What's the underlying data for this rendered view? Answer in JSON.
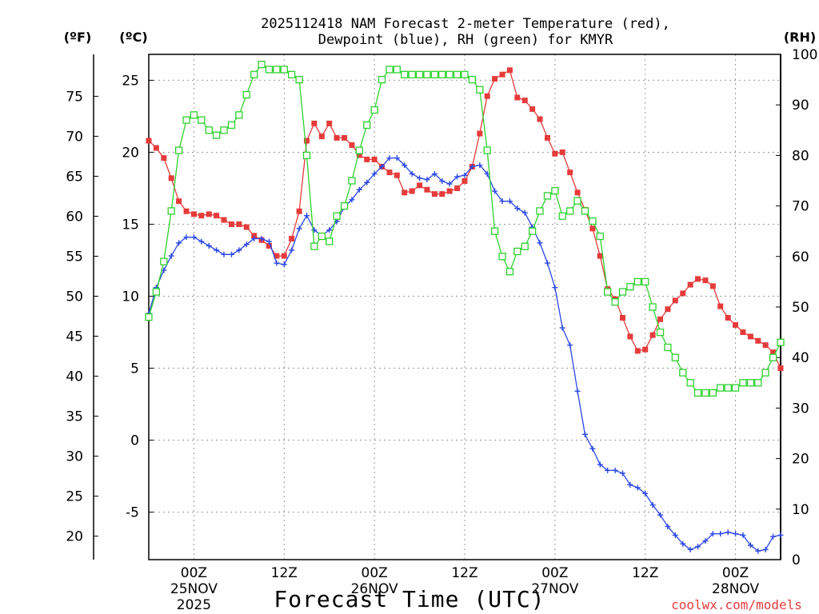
{
  "chart_data": {
    "type": "line",
    "title_line1": "2025112418 NAM Forecast 2-meter Temperature (red),",
    "title_line2": "Dewpoint (blue), RH (green) for KMYR",
    "xlabel": "Forecast Time (UTC)",
    "credit": "coolwx.com/models",
    "units": {
      "fahrenheit": "(ºF)",
      "celsius": "(ºC)",
      "rh": "(RH)"
    },
    "x_range_hours": [
      -5,
      65
    ],
    "celsius_range": [
      -8.3,
      26.8
    ],
    "rh_range": [
      0,
      100
    ],
    "celsius_ticks": [
      "-5",
      "0",
      "5",
      "10",
      "15",
      "20",
      "25"
    ],
    "fahrenheit_ticks": [
      "20",
      "25",
      "30",
      "35",
      "40",
      "45",
      "50",
      "55",
      "60",
      "65",
      "70",
      "75"
    ],
    "rh_ticks": [
      "0",
      "10",
      "20",
      "30",
      "40",
      "50",
      "60",
      "70",
      "80",
      "90",
      "100"
    ],
    "x_ticks": [
      {
        "hour": 0,
        "line1": "00Z",
        "line2": "25NOV",
        "line3": "2025"
      },
      {
        "hour": 10,
        "line1": "12Z",
        "line2": "",
        "line3": ""
      },
      {
        "hour": 20,
        "line1": "00Z",
        "line2": "26NOV",
        "line3": ""
      },
      {
        "hour": 30,
        "line1": "12Z",
        "line2": "",
        "line3": ""
      },
      {
        "hour": 40,
        "line1": "00Z",
        "line2": "27NOV",
        "line3": ""
      },
      {
        "hour": 50,
        "line1": "12Z",
        "line2": "",
        "line3": ""
      },
      {
        "hour": 60,
        "line1": "00Z",
        "line2": "28NOV",
        "line3": ""
      }
    ],
    "series": [
      {
        "name": "Temperature",
        "unit": "C",
        "color": "#e63b3b",
        "marker": "filled-square",
        "x": [
          -5,
          -4.17,
          -3.33,
          -2.5,
          -1.67,
          -0.83,
          0,
          0.83,
          1.67,
          2.5,
          3.33,
          4.17,
          5,
          5.83,
          6.67,
          7.5,
          8.33,
          9.17,
          10,
          10.83,
          11.67,
          12.5,
          13.33,
          14.17,
          15,
          15.83,
          16.67,
          17.5,
          18.33,
          19.17,
          20,
          20.83,
          21.67,
          22.5,
          23.33,
          24.17,
          25,
          25.83,
          26.67,
          27.5,
          28.33,
          29.17,
          30,
          30.83,
          31.67,
          32.5,
          33.33,
          34.17,
          35,
          35.83,
          36.67,
          37.5,
          38.33,
          39.17,
          40,
          40.83,
          41.67,
          42.5,
          43.33,
          44.17,
          45,
          45.83,
          46.67,
          47.5,
          48.33,
          49.17,
          50,
          50.83,
          51.67,
          52.5,
          53.33,
          54.17,
          55,
          55.83,
          56.67,
          57.5,
          58.33,
          59.17,
          60,
          60.83,
          61.67,
          62.5,
          63.33,
          64.17,
          65
        ],
        "values": [
          20.8,
          20.3,
          19.6,
          18.2,
          16.6,
          15.9,
          15.7,
          15.6,
          15.7,
          15.6,
          15.3,
          15.0,
          15.0,
          14.8,
          14.2,
          13.9,
          13.5,
          12.8,
          12.8,
          14.0,
          15.9,
          20.8,
          22.0,
          21.1,
          22.0,
          21.0,
          21.0,
          20.5,
          19.8,
          19.5,
          19.5,
          19.0,
          18.6,
          18.4,
          17.2,
          17.3,
          17.7,
          17.4,
          17.1,
          17.1,
          17.3,
          17.5,
          18.0,
          19.0,
          21.3,
          23.9,
          25.1,
          25.4,
          25.7,
          23.8,
          23.6,
          23.0,
          22.3,
          21.0,
          19.9,
          20.0,
          18.6,
          17.2,
          16.0,
          14.7,
          12.8,
          10.5,
          9.8,
          8.5,
          7.2,
          6.2,
          6.3,
          7.3,
          8.4,
          9.1,
          9.7,
          10.2,
          10.8,
          11.2,
          11.1,
          10.7,
          9.3,
          8.5,
          8.0,
          7.5,
          7.2,
          6.9,
          6.6,
          6.1,
          5.0
        ]
      },
      {
        "name": "Dewpoint",
        "unit": "C",
        "color": "#2b47e6",
        "marker": "plus",
        "x": [
          -5,
          -4.17,
          -3.33,
          -2.5,
          -1.67,
          -0.83,
          0,
          0.83,
          1.67,
          2.5,
          3.33,
          4.17,
          5,
          5.83,
          6.67,
          7.5,
          8.33,
          9.17,
          10,
          10.83,
          11.67,
          12.5,
          13.33,
          14.17,
          15,
          15.83,
          16.67,
          17.5,
          18.33,
          19.17,
          20,
          20.83,
          21.67,
          22.5,
          23.33,
          24.17,
          25,
          25.83,
          26.67,
          27.5,
          28.33,
          29.17,
          30,
          30.83,
          31.67,
          32.5,
          33.33,
          34.17,
          35,
          35.83,
          36.67,
          37.5,
          38.33,
          39.17,
          40,
          40.83,
          41.67,
          42.5,
          43.33,
          44.17,
          45,
          45.83,
          46.67,
          47.5,
          48.33,
          49.17,
          50,
          50.83,
          51.67,
          52.5,
          53.33,
          54.17,
          55,
          55.83,
          56.67,
          57.5,
          58.33,
          59.17,
          60,
          60.83,
          61.67,
          62.5,
          63.33,
          64.17,
          65
        ],
        "values": [
          8.8,
          10.6,
          11.8,
          12.8,
          13.7,
          14.1,
          14.1,
          13.8,
          13.5,
          13.2,
          12.9,
          12.9,
          13.2,
          13.6,
          14.0,
          14.0,
          13.8,
          12.3,
          12.2,
          13.2,
          14.7,
          15.6,
          14.6,
          14.2,
          14.6,
          15.2,
          16.2,
          16.7,
          17.4,
          17.9,
          18.5,
          19.0,
          19.6,
          19.6,
          19.1,
          18.5,
          18.2,
          18.1,
          18.5,
          18.0,
          17.8,
          18.3,
          18.4,
          19.0,
          19.1,
          18.5,
          17.3,
          16.6,
          16.6,
          16.1,
          15.8,
          14.8,
          13.7,
          12.3,
          10.6,
          7.8,
          6.6,
          3.4,
          0.4,
          -0.6,
          -1.7,
          -2.1,
          -2.1,
          -2.3,
          -3.1,
          -3.3,
          -3.7,
          -4.5,
          -5.2,
          -6.0,
          -6.6,
          -7.2,
          -7.6,
          -7.4,
          -7.0,
          -6.5,
          -6.5,
          -6.4,
          -6.5,
          -6.6,
          -7.3,
          -7.7,
          -7.6,
          -6.7,
          -6.6
        ]
      },
      {
        "name": "RH",
        "unit": "%",
        "color": "#2ed12e",
        "marker": "open-square",
        "x": [
          -5,
          -4.17,
          -3.33,
          -2.5,
          -1.67,
          -0.83,
          0,
          0.83,
          1.67,
          2.5,
          3.33,
          4.17,
          5,
          5.83,
          6.67,
          7.5,
          8.33,
          9.17,
          10,
          10.83,
          11.67,
          12.5,
          13.33,
          14.17,
          15,
          15.83,
          16.67,
          17.5,
          18.33,
          19.17,
          20,
          20.83,
          21.67,
          22.5,
          23.33,
          24.17,
          25,
          25.83,
          26.67,
          27.5,
          28.33,
          29.17,
          30,
          30.83,
          31.67,
          32.5,
          33.33,
          34.17,
          35,
          35.83,
          36.67,
          37.5,
          38.33,
          39.17,
          40,
          40.83,
          41.67,
          42.5,
          43.33,
          44.17,
          45,
          45.83,
          46.67,
          47.5,
          48.33,
          49.17,
          50,
          50.83,
          51.67,
          52.5,
          53.33,
          54.17,
          55,
          55.83,
          56.67,
          57.5,
          58.33,
          59.17,
          60,
          60.83,
          61.67,
          62.5,
          63.33,
          64.17,
          65
        ],
        "values": [
          48,
          53,
          59,
          69,
          81,
          87,
          88,
          87,
          85,
          84,
          85,
          86,
          88,
          92,
          96,
          98,
          97,
          97,
          97,
          96,
          95,
          80,
          62,
          64,
          63,
          68,
          70,
          75,
          81,
          86,
          89,
          95,
          97,
          97,
          96,
          96,
          96,
          96,
          96,
          96,
          96,
          96,
          96,
          95,
          93,
          81,
          65,
          60,
          57,
          61,
          62,
          65,
          69,
          72,
          73,
          68,
          69,
          71,
          69,
          67,
          64,
          53,
          51,
          53,
          54,
          55,
          55,
          50,
          45,
          42,
          40,
          37,
          35,
          33,
          33,
          33,
          34,
          34,
          34,
          35,
          35,
          35,
          37,
          40,
          43
        ]
      }
    ]
  }
}
